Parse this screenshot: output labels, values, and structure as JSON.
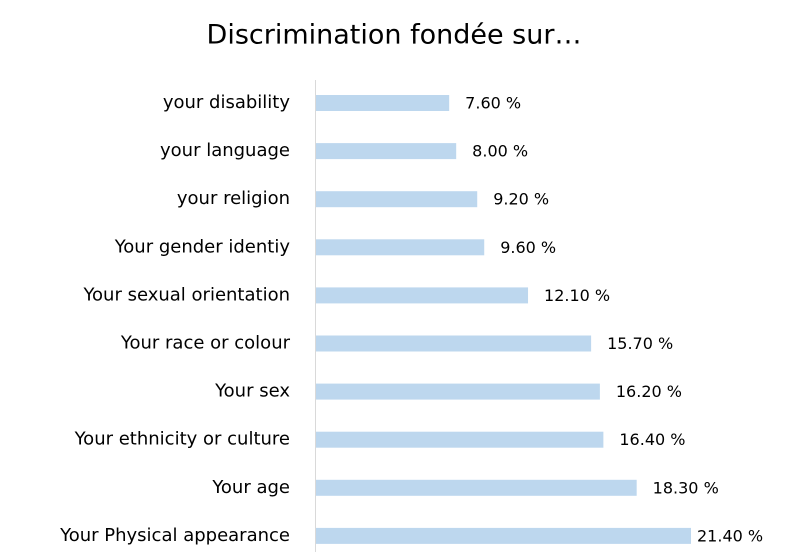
{
  "chart_data": {
    "type": "bar",
    "orientation": "horizontal",
    "title": "Discrimination fondée sur…",
    "categories": [
      "your disability",
      "your language",
      "your religion",
      "Your gender identiy",
      "Your sexual orientation",
      "Your race or colour",
      "Your sex",
      "Your ethnicity or culture",
      "Your age",
      "Your Physical appearance"
    ],
    "values": [
      7.6,
      8.0,
      9.2,
      9.6,
      12.1,
      15.7,
      16.2,
      16.4,
      18.3,
      21.4
    ],
    "value_labels": [
      "7.60 %",
      "8.00 %",
      "9.20 %",
      "9.60 %",
      "12.10 %",
      "15.70 %",
      "16.20 %",
      "16.40 %",
      "18.30 %",
      "21.40 %"
    ],
    "color": "#bdd7ee"
  }
}
